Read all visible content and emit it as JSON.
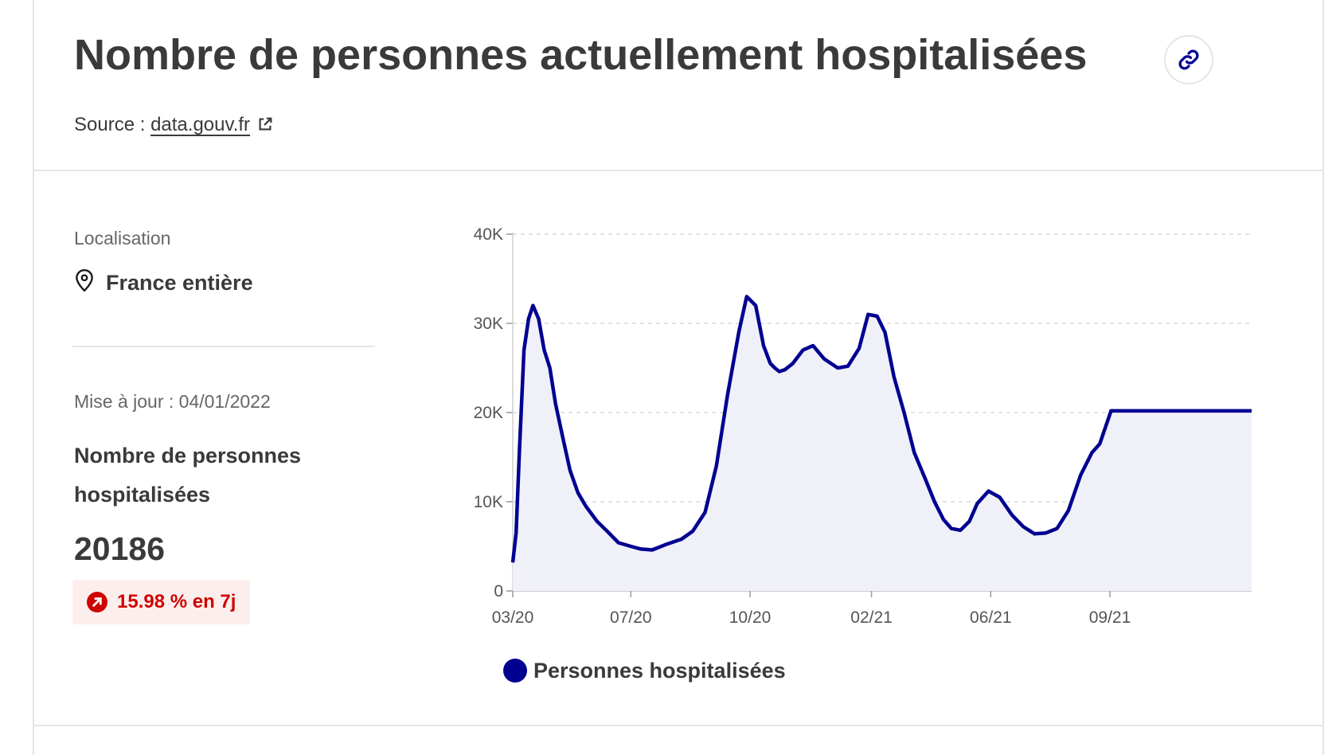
{
  "header": {
    "title": "Nombre de personnes actuellement hospitalisées",
    "source_prefix": "Source :",
    "source_link": "data.gouv.fr",
    "link_icon": "link-icon",
    "external_icon": "external-link-icon"
  },
  "sidebar": {
    "location_label": "Localisation",
    "location_value": "France entière",
    "location_icon": "map-pin-icon",
    "update_text": "Mise à jour : 04/01/2022",
    "metric_label": "Nombre de personnes hospitalisées",
    "metric_value": "20186",
    "trend_text": "15.98 % en 7j",
    "trend_icon": "arrow-up-right-icon",
    "trend_color": "#ce0500"
  },
  "chart_data": {
    "type": "area",
    "legend_position": "bottom",
    "grid": "horizontal-dashed",
    "line_color": "#000091",
    "fill_color": "#f0f0f8",
    "xlim": [
      "2020-03-18",
      "2022-01-04"
    ],
    "ylim": [
      0,
      40000
    ],
    "yticks": [
      0,
      10000,
      20000,
      30000,
      40000
    ],
    "ytick_labels": [
      "0",
      "10K",
      "20K",
      "30K",
      "40K"
    ],
    "xtick_dates": [
      "2020-03-18",
      "2020-07-01",
      "2020-10-15",
      "2021-01-31",
      "2021-05-17",
      "2021-08-31"
    ],
    "xtick_labels": [
      "03/20",
      "07/20",
      "10/20",
      "02/21",
      "06/21",
      "09/21"
    ],
    "series": [
      {
        "name": "Personnes hospitalisées",
        "x": [
          "2020-03-18",
          "2020-03-21",
          "2020-03-24",
          "2020-03-28",
          "2020-04-01",
          "2020-04-05",
          "2020-04-10",
          "2020-04-15",
          "2020-04-20",
          "2020-04-25",
          "2020-05-01",
          "2020-05-08",
          "2020-05-15",
          "2020-05-22",
          "2020-06-01",
          "2020-06-10",
          "2020-06-20",
          "2020-07-01",
          "2020-07-10",
          "2020-07-20",
          "2020-08-01",
          "2020-08-15",
          "2020-08-25",
          "2020-09-05",
          "2020-09-15",
          "2020-09-25",
          "2020-10-05",
          "2020-10-12",
          "2020-10-20",
          "2020-10-27",
          "2020-11-02",
          "2020-11-06",
          "2020-11-10",
          "2020-11-15",
          "2020-11-22",
          "2020-12-01",
          "2020-12-10",
          "2020-12-20",
          "2021-01-01",
          "2021-01-10",
          "2021-01-20",
          "2021-01-28",
          "2021-02-05",
          "2021-02-12",
          "2021-02-20",
          "2021-03-01",
          "2021-03-10",
          "2021-03-20",
          "2021-03-28",
          "2021-04-05",
          "2021-04-12",
          "2021-04-20",
          "2021-04-28",
          "2021-05-05",
          "2021-05-15",
          "2021-05-25",
          "2021-06-05",
          "2021-06-15",
          "2021-06-25",
          "2021-07-05",
          "2021-07-15",
          "2021-07-25",
          "2021-08-05",
          "2021-08-15",
          "2021-08-22",
          "2021-09-01",
          "2021-09-10",
          "2021-09-20",
          "2021-10-01",
          "2021-10-10",
          "2021-10-20",
          "2021-10-30",
          "2021-11-10",
          "2021-11-20",
          "2021-11-30",
          "2021-12-10",
          "2021-12-20",
          "2021-12-28",
          "2022-01-04"
        ],
        "values": [
          3200,
          6500,
          16000,
          27000,
          30500,
          32000,
          30500,
          27000,
          25000,
          21000,
          17500,
          13500,
          11000,
          9500,
          7800,
          6700,
          5400,
          5000,
          4700,
          4600,
          5200,
          5800,
          6700,
          8800,
          14000,
          22000,
          29000,
          33000,
          32000,
          27500,
          25500,
          25000,
          24600,
          24800,
          25500,
          27000,
          27500,
          26000,
          25000,
          25200,
          27200,
          31000,
          30800,
          29000,
          24000,
          20000,
          15500,
          12500,
          10000,
          8000,
          7000,
          6800,
          7800,
          9800,
          11200,
          10500,
          8500,
          7200,
          6400,
          6500,
          7000,
          9000,
          13000,
          15500,
          16500,
          20186,
          20186,
          20186,
          20186,
          20186,
          20186,
          20186,
          20186,
          20186,
          20186,
          20186,
          20186,
          20186,
          20186
        ]
      }
    ]
  }
}
